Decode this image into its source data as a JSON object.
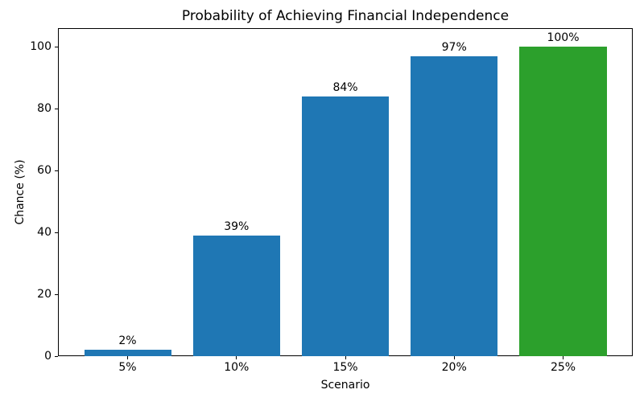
{
  "chart_data": {
    "type": "bar",
    "title": "Probability of Achieving Financial Independence",
    "xlabel": "Scenario",
    "ylabel": "Chance (%)",
    "categories": [
      "5%",
      "10%",
      "15%",
      "20%",
      "25%"
    ],
    "values": [
      2,
      39,
      84,
      97,
      100
    ],
    "bar_labels": [
      "2%",
      "39%",
      "84%",
      "97%",
      "100%"
    ],
    "bar_colors": [
      "#1f77b4",
      "#1f77b4",
      "#1f77b4",
      "#1f77b4",
      "#2ca02c"
    ],
    "yticks": [
      0,
      20,
      40,
      60,
      80,
      100
    ],
    "ylim": [
      0,
      106
    ],
    "grid": false,
    "legend": "none",
    "colors": {
      "bar_blue": "#1f77b4",
      "bar_green": "#2ca02c",
      "text": "#000000",
      "background": "#ffffff"
    }
  }
}
